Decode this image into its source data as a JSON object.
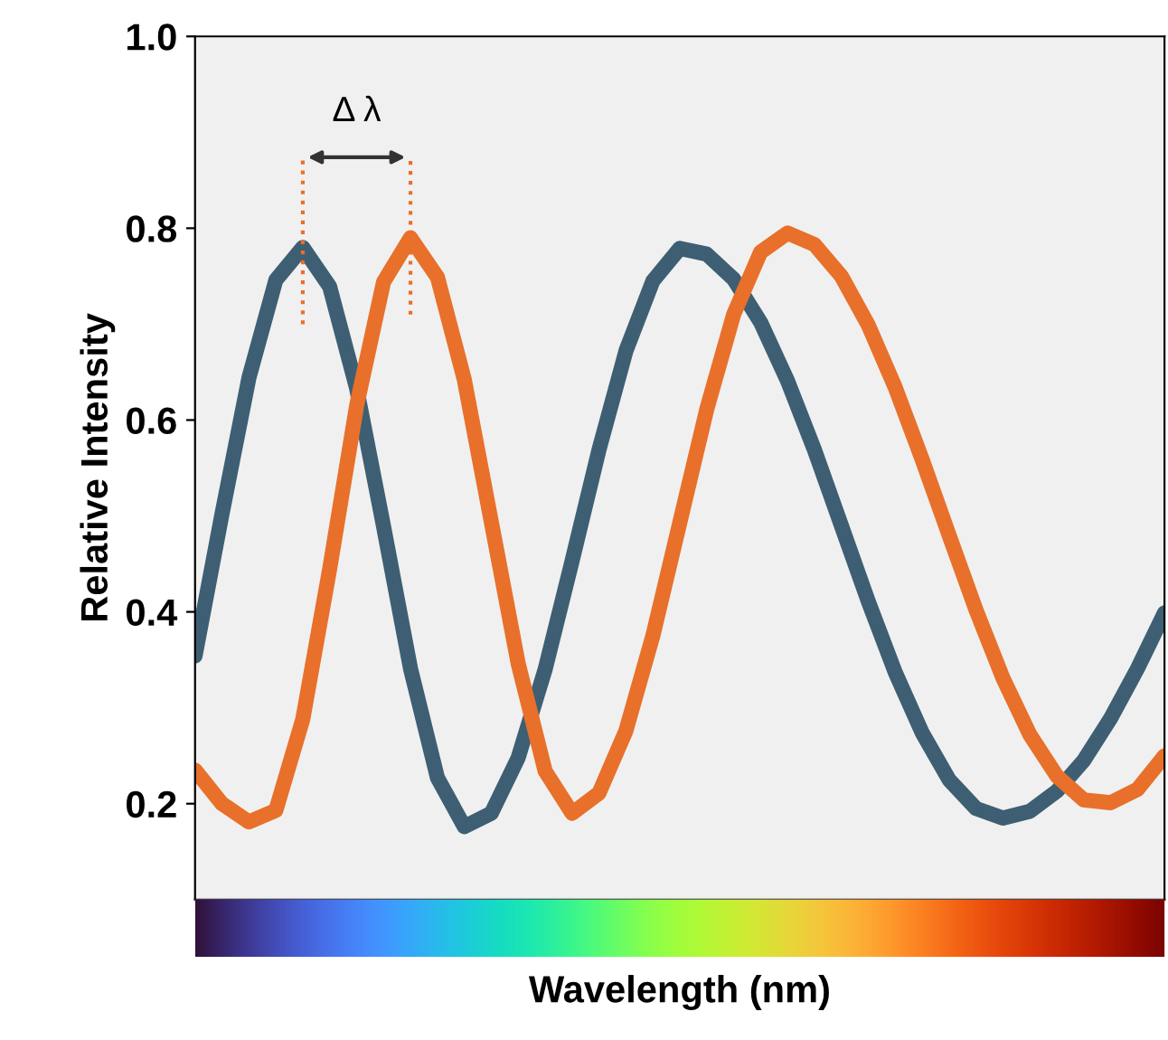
{
  "chart_data": {
    "type": "line",
    "xlabel": "Wavelength (nm)",
    "ylabel": "Relative Intensity",
    "categories": [
      null,
      null,
      null,
      null,
      null,
      null,
      null,
      null,
      null,
      null,
      null,
      null,
      null,
      null,
      null,
      null,
      null,
      null,
      null,
      null,
      null,
      null,
      null,
      null,
      null,
      null,
      null,
      null,
      null,
      null,
      null,
      null,
      null,
      null,
      null,
      null,
      null
    ],
    "series": [
      {
        "color": "#3e5f73",
        "values": [
          0.354,
          0.502,
          0.644,
          0.746,
          0.78,
          0.739,
          0.633,
          0.489,
          0.341,
          0.227,
          0.176,
          0.19,
          0.248,
          0.34,
          0.453,
          0.569,
          0.672,
          0.745,
          0.779,
          0.773,
          0.747,
          0.702,
          0.641,
          0.569,
          0.49,
          0.411,
          0.337,
          0.274,
          0.225,
          0.195,
          0.185,
          0.192,
          0.213,
          0.245,
          0.289,
          0.341,
          0.399
        ]
      },
      {
        "color": "#e8702a",
        "values": [
          0.235,
          0.2,
          0.181,
          0.193,
          0.288,
          0.445,
          0.615,
          0.744,
          0.79,
          0.749,
          0.642,
          0.494,
          0.346,
          0.234,
          0.19,
          0.211,
          0.276,
          0.375,
          0.493,
          0.611,
          0.71,
          0.775,
          0.795,
          0.783,
          0.75,
          0.699,
          0.634,
          0.559,
          0.48,
          0.402,
          0.331,
          0.272,
          0.229,
          0.204,
          0.201,
          0.215,
          0.25
        ]
      }
    ],
    "ylim": [
      0.1,
      1.0
    ],
    "yticks": [
      0.2,
      0.4,
      0.6,
      0.8,
      {
        "value": 1.0,
        "label": "1.0"
      }
    ],
    "tick_labels": "y",
    "grid": false,
    "legend": false,
    "marker": "none",
    "line_style": "solid",
    "annotations": [
      "Δ λ"
    ]
  }
}
